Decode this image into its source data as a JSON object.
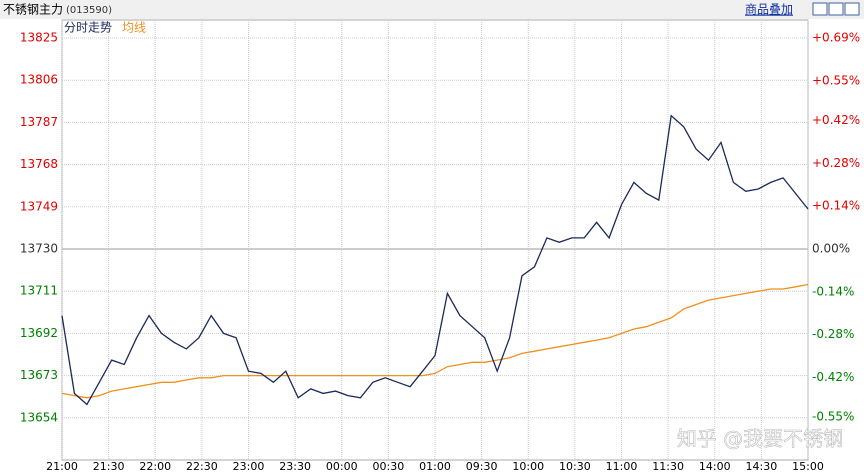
{
  "chart_data": {
    "type": "line",
    "title": "不锈钢主力",
    "code": "(013590)",
    "overlay_button": "商品叠加",
    "watermark": "知乎 @我要不锈钢",
    "x": [
      0,
      8,
      16,
      24,
      32,
      40,
      48,
      56,
      64,
      72,
      80,
      88,
      96,
      104,
      112,
      120,
      128,
      136,
      144,
      152,
      160,
      168,
      176,
      184,
      192,
      200,
      208,
      216,
      224,
      232,
      240,
      248,
      256,
      264,
      272,
      280,
      288,
      296,
      304,
      312,
      320,
      328,
      336,
      344,
      352,
      360,
      368,
      376,
      384,
      392,
      400,
      408,
      416,
      424,
      432,
      440,
      448,
      456,
      464,
      472,
      480
    ],
    "series": [
      {
        "name": "分时走势",
        "color": "#1a2a5a",
        "values": [
          13700,
          13665,
          13660,
          13670,
          13680,
          13678,
          13690,
          13700,
          13692,
          13688,
          13685,
          13690,
          13700,
          13692,
          13690,
          13675,
          13674,
          13670,
          13675,
          13663,
          13667,
          13665,
          13666,
          13664,
          13663,
          13670,
          13672,
          13670,
          13668,
          13675,
          13682,
          13710,
          13700,
          13695,
          13690,
          13675,
          13690,
          13718,
          13722,
          13735,
          13733,
          13735,
          13735,
          13742,
          13735,
          13750,
          13760,
          13755,
          13752,
          13790,
          13785,
          13775,
          13770,
          13778,
          13760,
          13756,
          13757,
          13760,
          13762,
          13755,
          13748
        ]
      },
      {
        "name": "均线",
        "color": "#f0901e",
        "values": [
          13665,
          13664,
          13663,
          13664,
          13666,
          13667,
          13668,
          13669,
          13670,
          13670,
          13671,
          13672,
          13672,
          13673,
          13673,
          13673,
          13673,
          13673,
          13673,
          13673,
          13673,
          13673,
          13673,
          13673,
          13673,
          13673,
          13673,
          13673,
          13673,
          13673,
          13674,
          13677,
          13678,
          13679,
          13679,
          13680,
          13681,
          13683,
          13684,
          13685,
          13686,
          13687,
          13688,
          13689,
          13690,
          13692,
          13694,
          13695,
          13697,
          13699,
          13703,
          13705,
          13707,
          13708,
          13709,
          13710,
          13711,
          13712,
          13712,
          13713,
          13714
        ]
      }
    ],
    "xlim": [
      0,
      480
    ],
    "xticks": [
      {
        "value": 0,
        "label": "21:00"
      },
      {
        "value": 30,
        "label": "21:30"
      },
      {
        "value": 60,
        "label": "22:00"
      },
      {
        "value": 90,
        "label": "22:30"
      },
      {
        "value": 120,
        "label": "23:00"
      },
      {
        "value": 150,
        "label": "23:30"
      },
      {
        "value": 180,
        "label": "00:00"
      },
      {
        "value": 210,
        "label": "00:30"
      },
      {
        "value": 240,
        "label": "01:00"
      },
      {
        "value": 270,
        "label": "09:30"
      },
      {
        "value": 300,
        "label": "10:00"
      },
      {
        "value": 330,
        "label": "10:30"
      },
      {
        "value": 360,
        "label": "11:00"
      },
      {
        "value": 390,
        "label": "11:30"
      },
      {
        "value": 420,
        "label": "14:00"
      },
      {
        "value": 450,
        "label": "14:30"
      },
      {
        "value": 480,
        "label": "15:00"
      }
    ],
    "ylim": [
      13635,
      13825
    ],
    "yticks": [
      13654,
      13673,
      13692,
      13711,
      13730,
      13749,
      13768,
      13787,
      13806,
      13825
    ],
    "base": 13730,
    "y2lim": [
      -0.69,
      0.69
    ],
    "y2ticks": [
      {
        "value": -0.55,
        "label": "-0.55%"
      },
      {
        "value": -0.42,
        "label": "-0.42%"
      },
      {
        "value": -0.28,
        "label": "-0.28%"
      },
      {
        "value": -0.14,
        "label": "-0.14%"
      },
      {
        "value": 0,
        "label": "0.00%"
      },
      {
        "value": 0.14,
        "label": "+0.14%"
      },
      {
        "value": 0.28,
        "label": "+0.28%"
      },
      {
        "value": 0.42,
        "label": "+0.42%"
      },
      {
        "value": 0.55,
        "label": "+0.55%"
      },
      {
        "value": 0.69,
        "label": "+0.69%"
      }
    ],
    "up_color": "#e00000",
    "down_color": "#008000",
    "grid": true
  }
}
